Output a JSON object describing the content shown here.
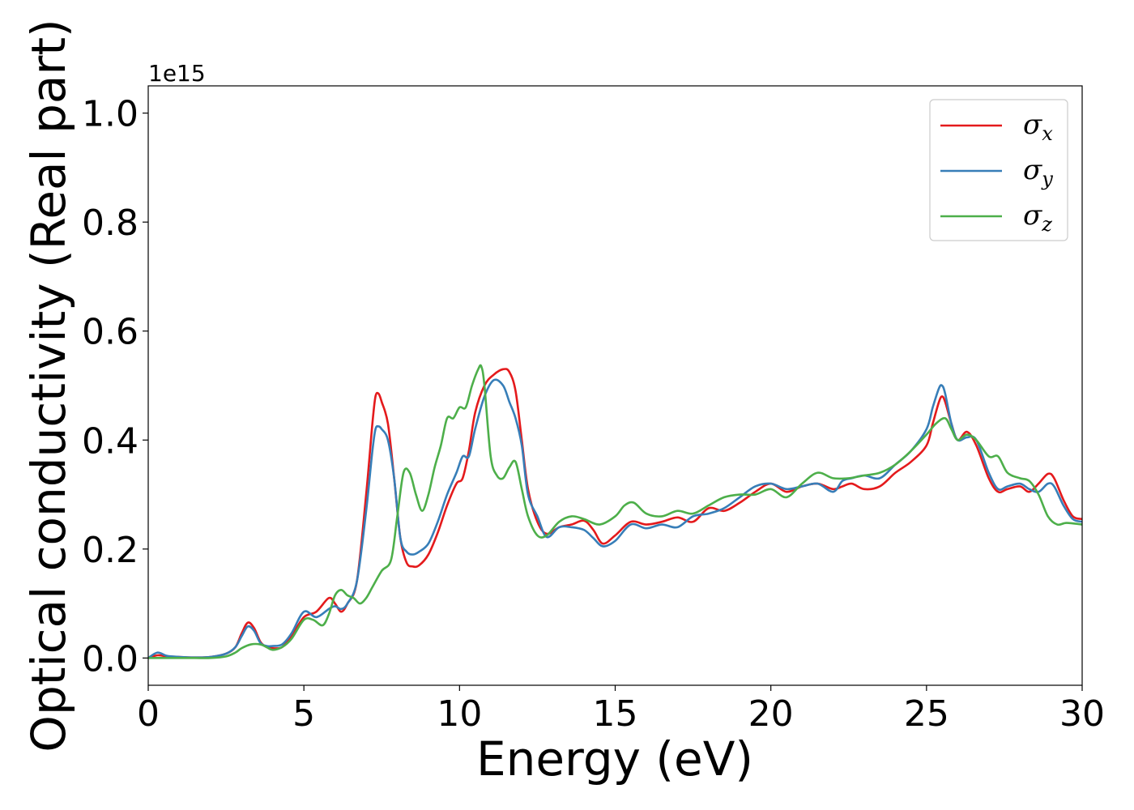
{
  "chart_data": {
    "type": "line",
    "xlabel": "Energy (eV)",
    "ylabel": "Optical conductivity (Real part)",
    "y_offset_text": "1e15",
    "xlim": [
      0,
      30
    ],
    "ylim": [
      -0.05,
      1.05
    ],
    "x_ticks": [
      0,
      5,
      10,
      15,
      20,
      25,
      30
    ],
    "x_tick_labels": [
      "0",
      "5",
      "10",
      "15",
      "20",
      "25",
      "30"
    ],
    "y_ticks": [
      0.0,
      0.2,
      0.4,
      0.6,
      0.8,
      1.0
    ],
    "y_tick_labels": [
      "0.0",
      "0.2",
      "0.4",
      "0.6",
      "0.8",
      "1.0"
    ],
    "grid": false,
    "legend_position": "top-right",
    "series": [
      {
        "name": "σx",
        "symbol": "σ",
        "subscript": "x",
        "color": "#e41a1c",
        "x": [
          0,
          0.3,
          0.6,
          1,
          1.5,
          2,
          2.5,
          2.8,
          3.0,
          3.2,
          3.4,
          3.6,
          3.8,
          4.0,
          4.3,
          4.6,
          5.0,
          5.4,
          5.8,
          6.0,
          6.2,
          6.4,
          6.7,
          7.0,
          7.2,
          7.3,
          7.4,
          7.5,
          7.7,
          7.9,
          8.1,
          8.3,
          8.5,
          8.7,
          9.0,
          9.3,
          9.6,
          9.9,
          10.1,
          10.3,
          10.5,
          10.8,
          11.1,
          11.4,
          11.6,
          11.8,
          12.0,
          12.2,
          12.5,
          12.8,
          13.2,
          13.6,
          14.0,
          14.3,
          14.6,
          15.0,
          15.5,
          16.0,
          16.5,
          17.0,
          17.5,
          18.0,
          18.5,
          19.0,
          19.5,
          20.0,
          20.5,
          21.0,
          21.5,
          22.0,
          22.3,
          22.6,
          23.0,
          23.5,
          24.0,
          24.5,
          25.0,
          25.2,
          25.4,
          25.5,
          25.6,
          25.8,
          26.0,
          26.3,
          26.6,
          27.0,
          27.3,
          27.6,
          28.0,
          28.3,
          28.6,
          28.9,
          29.1,
          29.4,
          29.7,
          30.0
        ],
        "y": [
          0.0,
          0.005,
          0.003,
          0.002,
          0.001,
          0.002,
          0.008,
          0.02,
          0.045,
          0.065,
          0.055,
          0.03,
          0.02,
          0.018,
          0.02,
          0.04,
          0.075,
          0.085,
          0.11,
          0.1,
          0.085,
          0.1,
          0.14,
          0.3,
          0.43,
          0.48,
          0.485,
          0.47,
          0.43,
          0.33,
          0.22,
          0.175,
          0.168,
          0.17,
          0.19,
          0.23,
          0.28,
          0.32,
          0.33,
          0.38,
          0.45,
          0.5,
          0.52,
          0.53,
          0.525,
          0.49,
          0.4,
          0.31,
          0.25,
          0.228,
          0.24,
          0.245,
          0.252,
          0.235,
          0.21,
          0.225,
          0.25,
          0.245,
          0.25,
          0.258,
          0.25,
          0.275,
          0.27,
          0.285,
          0.305,
          0.32,
          0.305,
          0.315,
          0.32,
          0.31,
          0.315,
          0.32,
          0.31,
          0.315,
          0.34,
          0.36,
          0.39,
          0.43,
          0.47,
          0.48,
          0.47,
          0.43,
          0.4,
          0.415,
          0.39,
          0.33,
          0.305,
          0.31,
          0.315,
          0.305,
          0.32,
          0.338,
          0.33,
          0.29,
          0.26,
          0.255
        ]
      },
      {
        "name": "σy",
        "symbol": "σ",
        "subscript": "y",
        "color": "#377eb8",
        "x": [
          0,
          0.3,
          0.6,
          1,
          1.5,
          2,
          2.5,
          2.8,
          3.0,
          3.2,
          3.4,
          3.6,
          3.8,
          4.0,
          4.3,
          4.6,
          5.0,
          5.4,
          5.8,
          6.0,
          6.2,
          6.4,
          6.7,
          7.0,
          7.2,
          7.3,
          7.4,
          7.5,
          7.7,
          7.9,
          8.1,
          8.3,
          8.5,
          8.7,
          9.0,
          9.3,
          9.6,
          9.9,
          10.1,
          10.3,
          10.5,
          10.8,
          11.1,
          11.4,
          11.6,
          11.8,
          12.0,
          12.2,
          12.5,
          12.8,
          13.2,
          13.6,
          14.0,
          14.3,
          14.6,
          15.0,
          15.5,
          16.0,
          16.5,
          17.0,
          17.5,
          18.0,
          18.5,
          19.0,
          19.5,
          20.0,
          20.5,
          21.0,
          21.5,
          22.0,
          22.3,
          22.6,
          23.0,
          23.5,
          24.0,
          24.5,
          25.0,
          25.2,
          25.4,
          25.5,
          25.6,
          25.8,
          26.0,
          26.3,
          26.6,
          27.0,
          27.3,
          27.6,
          28.0,
          28.3,
          28.6,
          28.9,
          29.1,
          29.4,
          29.7,
          30.0
        ],
        "y": [
          0.0,
          0.01,
          0.004,
          0.002,
          0.001,
          0.002,
          0.008,
          0.02,
          0.04,
          0.058,
          0.05,
          0.028,
          0.022,
          0.022,
          0.025,
          0.045,
          0.085,
          0.075,
          0.09,
          0.095,
          0.09,
          0.1,
          0.14,
          0.27,
          0.38,
          0.42,
          0.425,
          0.42,
          0.4,
          0.33,
          0.22,
          0.195,
          0.19,
          0.195,
          0.21,
          0.25,
          0.3,
          0.34,
          0.37,
          0.37,
          0.42,
          0.48,
          0.51,
          0.5,
          0.47,
          0.44,
          0.39,
          0.3,
          0.26,
          0.222,
          0.24,
          0.24,
          0.235,
          0.22,
          0.205,
          0.215,
          0.245,
          0.238,
          0.245,
          0.24,
          0.26,
          0.265,
          0.275,
          0.295,
          0.315,
          0.32,
          0.31,
          0.315,
          0.32,
          0.305,
          0.325,
          0.33,
          0.335,
          0.33,
          0.355,
          0.38,
          0.42,
          0.46,
          0.495,
          0.5,
          0.485,
          0.43,
          0.4,
          0.405,
          0.4,
          0.34,
          0.31,
          0.315,
          0.32,
          0.31,
          0.305,
          0.32,
          0.315,
          0.28,
          0.255,
          0.25
        ]
      },
      {
        "name": "σz",
        "symbol": "σ",
        "subscript": "z",
        "color": "#4daf4a",
        "x": [
          0,
          0.5,
          1,
          1.5,
          2,
          2.5,
          2.8,
          3.0,
          3.3,
          3.6,
          3.8,
          4.0,
          4.3,
          4.6,
          5.0,
          5.3,
          5.6,
          5.8,
          6.0,
          6.2,
          6.4,
          6.6,
          6.8,
          7.0,
          7.2,
          7.5,
          7.8,
          8.0,
          8.2,
          8.4,
          8.6,
          8.8,
          9.0,
          9.2,
          9.4,
          9.6,
          9.8,
          10.0,
          10.2,
          10.4,
          10.6,
          10.7,
          10.8,
          11.0,
          11.2,
          11.4,
          11.6,
          11.8,
          12.0,
          12.2,
          12.5,
          12.8,
          13.2,
          13.6,
          14.0,
          14.5,
          15.0,
          15.3,
          15.6,
          16.0,
          16.5,
          17.0,
          17.5,
          18.0,
          18.5,
          19.0,
          19.5,
          20.0,
          20.5,
          21.0,
          21.5,
          22.0,
          22.5,
          23.0,
          23.5,
          24.0,
          24.5,
          25.0,
          25.3,
          25.6,
          25.8,
          26.0,
          26.3,
          26.6,
          27.0,
          27.3,
          27.6,
          28.0,
          28.3,
          28.6,
          28.9,
          29.2,
          29.5,
          30.0
        ],
        "y": [
          0.0,
          0.0,
          0.0,
          0.0,
          0.0,
          0.003,
          0.01,
          0.018,
          0.025,
          0.025,
          0.02,
          0.015,
          0.02,
          0.035,
          0.07,
          0.07,
          0.06,
          0.08,
          0.115,
          0.125,
          0.115,
          0.11,
          0.1,
          0.11,
          0.13,
          0.16,
          0.18,
          0.26,
          0.34,
          0.34,
          0.3,
          0.27,
          0.3,
          0.35,
          0.39,
          0.44,
          0.44,
          0.46,
          0.46,
          0.5,
          0.53,
          0.535,
          0.5,
          0.37,
          0.335,
          0.33,
          0.35,
          0.36,
          0.31,
          0.26,
          0.225,
          0.225,
          0.25,
          0.26,
          0.255,
          0.245,
          0.26,
          0.28,
          0.285,
          0.265,
          0.26,
          0.27,
          0.265,
          0.28,
          0.295,
          0.3,
          0.3,
          0.31,
          0.295,
          0.32,
          0.34,
          0.33,
          0.33,
          0.335,
          0.34,
          0.355,
          0.38,
          0.41,
          0.43,
          0.44,
          0.42,
          0.4,
          0.41,
          0.4,
          0.37,
          0.37,
          0.34,
          0.33,
          0.325,
          0.3,
          0.26,
          0.245,
          0.248,
          0.245
        ]
      }
    ]
  }
}
